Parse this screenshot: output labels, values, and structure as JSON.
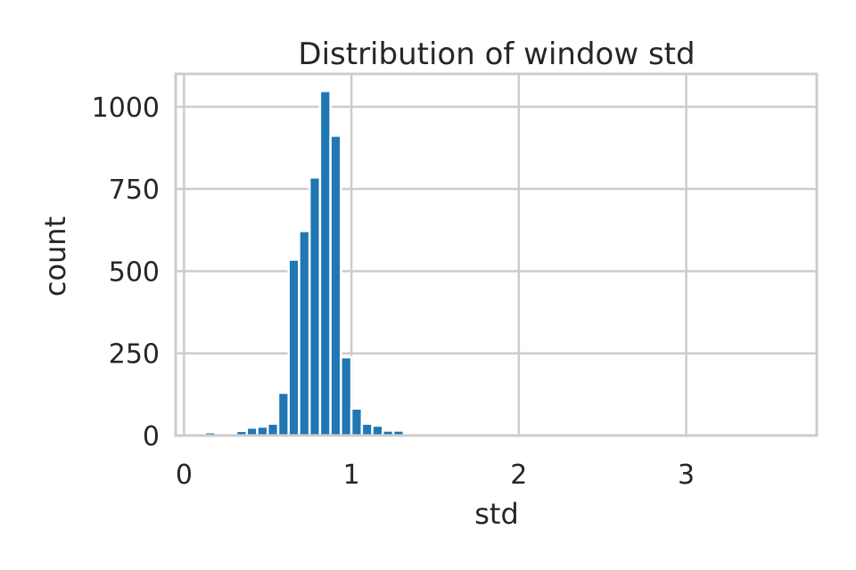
{
  "chart_data": {
    "type": "bar",
    "title": "Distribution of window std",
    "xlabel": "std",
    "ylabel": "count",
    "xlim": [
      -0.05,
      3.78
    ],
    "ylim": [
      0,
      1100
    ],
    "xticks": [
      0,
      1,
      2,
      3
    ],
    "xtick_labels": [
      "0",
      "1",
      "2",
      "3"
    ],
    "yticks": [
      0,
      250,
      500,
      750,
      1000
    ],
    "ytick_labels": [
      "0",
      "250",
      "500",
      "750",
      "1000"
    ],
    "grid": true,
    "legend": "none",
    "bar_color": "#1f77b4",
    "bin_width": 0.0625,
    "bin_start": 0.0,
    "counts": [
      0,
      0,
      10,
      3,
      7,
      14,
      24,
      27,
      36,
      130,
      535,
      622,
      785,
      1048,
      912,
      238,
      82,
      36,
      30,
      15,
      15,
      3,
      2,
      1,
      1,
      1,
      1,
      1,
      1,
      1,
      1,
      1,
      1,
      1,
      1,
      1,
      1,
      1,
      1,
      1,
      1,
      1,
      1,
      1,
      1,
      1,
      1,
      1,
      1,
      1,
      1,
      1,
      1,
      1,
      1,
      1,
      1,
      1
    ]
  }
}
